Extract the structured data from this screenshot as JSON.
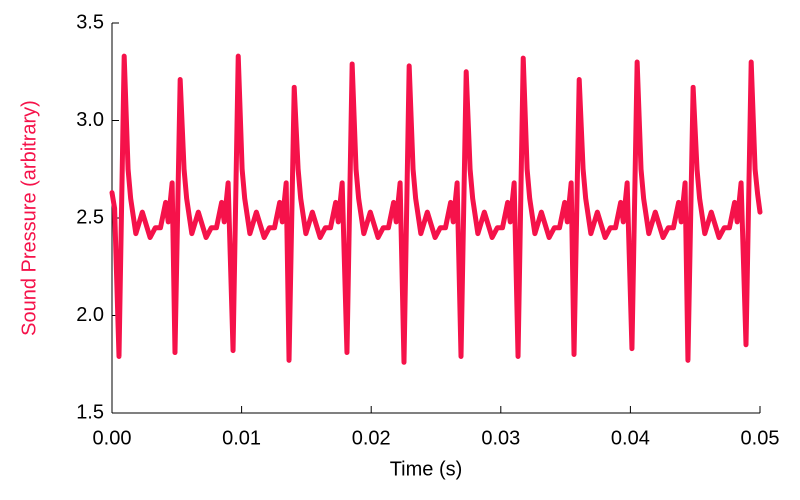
{
  "chart_data": {
    "type": "line",
    "xlabel": "Time (s)",
    "ylabel": "Sound Pressure (arbitrary)",
    "x": [
      0,
      0.0002,
      0.00054,
      0.00094,
      0.00124,
      0.00144,
      0.00184,
      0.00234,
      0.00294,
      0.00334,
      0.00374,
      0.00414,
      0.00434,
      0.00464,
      0.00486,
      0.00526,
      0.00556,
      0.00576,
      0.00616,
      0.00666,
      0.00726,
      0.00766,
      0.00806,
      0.00846,
      0.00866,
      0.00896,
      0.00934,
      0.00974,
      0.01004,
      0.01024,
      0.01064,
      0.01114,
      0.01174,
      0.01214,
      0.01254,
      0.01294,
      0.01314,
      0.01344,
      0.01366,
      0.01406,
      0.01436,
      0.01456,
      0.01496,
      0.01546,
      0.01606,
      0.01646,
      0.01686,
      0.01726,
      0.01746,
      0.01776,
      0.01813,
      0.01853,
      0.01883,
      0.01903,
      0.01943,
      0.01993,
      0.02053,
      0.02093,
      0.02133,
      0.02173,
      0.02193,
      0.02223,
      0.02253,
      0.02293,
      0.02323,
      0.02343,
      0.02383,
      0.02433,
      0.02493,
      0.02533,
      0.02573,
      0.02613,
      0.02633,
      0.02663,
      0.02693,
      0.02733,
      0.02763,
      0.02783,
      0.02823,
      0.02873,
      0.02933,
      0.02973,
      0.03013,
      0.03053,
      0.03073,
      0.03103,
      0.03133,
      0.03173,
      0.03203,
      0.03223,
      0.03263,
      0.03313,
      0.03373,
      0.03413,
      0.03453,
      0.03493,
      0.03513,
      0.03543,
      0.03565,
      0.03605,
      0.03635,
      0.03655,
      0.03695,
      0.03745,
      0.03805,
      0.03845,
      0.03885,
      0.03925,
      0.03945,
      0.03975,
      0.04012,
      0.04052,
      0.04082,
      0.04102,
      0.04142,
      0.04192,
      0.04252,
      0.04292,
      0.04332,
      0.04372,
      0.04392,
      0.04422,
      0.04444,
      0.04484,
      0.04514,
      0.04534,
      0.04574,
      0.04624,
      0.04684,
      0.04724,
      0.04764,
      0.04804,
      0.04824,
      0.04854,
      0.04892,
      0.04932,
      0.04962,
      0.04982,
      0.05
    ],
    "series": [
      {
        "name": "Sound Pressure",
        "color": "#f5124a",
        "values": [
          2.63,
          2.55,
          1.79,
          3.33,
          2.75,
          2.6,
          2.42,
          2.53,
          2.4,
          2.45,
          2.45,
          2.58,
          2.48,
          2.68,
          1.81,
          3.21,
          2.75,
          2.6,
          2.42,
          2.53,
          2.4,
          2.45,
          2.45,
          2.58,
          2.48,
          2.68,
          1.82,
          3.33,
          2.75,
          2.6,
          2.42,
          2.53,
          2.4,
          2.45,
          2.45,
          2.58,
          2.48,
          2.68,
          1.77,
          3.17,
          2.75,
          2.6,
          2.42,
          2.53,
          2.4,
          2.45,
          2.45,
          2.58,
          2.48,
          2.68,
          1.81,
          3.29,
          2.75,
          2.6,
          2.42,
          2.53,
          2.4,
          2.45,
          2.45,
          2.58,
          2.48,
          2.68,
          1.76,
          3.28,
          2.75,
          2.6,
          2.42,
          2.53,
          2.4,
          2.45,
          2.45,
          2.58,
          2.48,
          2.68,
          1.79,
          3.25,
          2.75,
          2.6,
          2.42,
          2.53,
          2.4,
          2.45,
          2.45,
          2.58,
          2.48,
          2.68,
          1.79,
          3.32,
          2.75,
          2.6,
          2.42,
          2.53,
          2.4,
          2.45,
          2.45,
          2.58,
          2.48,
          2.68,
          1.8,
          3.21,
          2.75,
          2.6,
          2.42,
          2.53,
          2.4,
          2.45,
          2.45,
          2.58,
          2.48,
          2.68,
          1.83,
          3.3,
          2.75,
          2.6,
          2.42,
          2.53,
          2.4,
          2.45,
          2.45,
          2.58,
          2.48,
          2.68,
          1.77,
          3.17,
          2.75,
          2.6,
          2.42,
          2.53,
          2.4,
          2.45,
          2.45,
          2.58,
          2.48,
          2.68,
          1.85,
          3.3,
          2.75,
          2.62,
          2.53
        ]
      }
    ],
    "xlim": [
      0,
      0.05
    ],
    "xticks": [
      {
        "value": 0,
        "label": "0.00"
      },
      {
        "value": 0.01,
        "label": "0.01"
      },
      {
        "value": 0.02,
        "label": "0.02"
      },
      {
        "value": 0.03,
        "label": "0.03"
      },
      {
        "value": 0.04,
        "label": "0.04"
      },
      {
        "value": 0.05,
        "label": "0.05"
      }
    ],
    "ylim": [
      1.5,
      3.5
    ],
    "yticks": [
      {
        "value": 1.5,
        "label": "1.5"
      },
      {
        "value": 2,
        "label": "2.0"
      },
      {
        "value": 2.5,
        "label": "2.5"
      },
      {
        "value": 3,
        "label": "3.0"
      },
      {
        "value": 3.5,
        "label": "3.5"
      }
    ],
    "grid": false
  }
}
